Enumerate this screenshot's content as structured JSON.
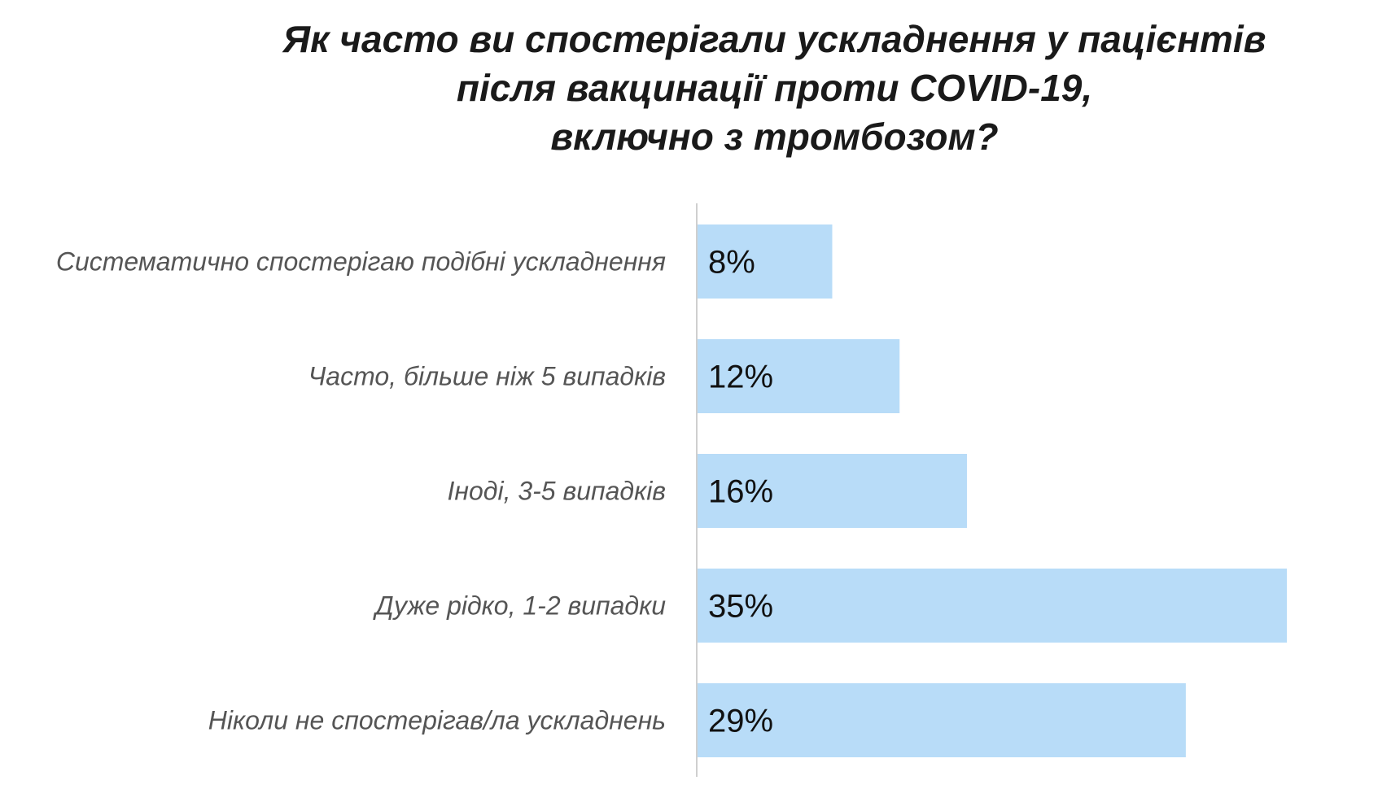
{
  "chart_data": {
    "type": "bar",
    "orientation": "horizontal",
    "title_lines": [
      "Як часто ви спостерігали ускладнення у пацієнтів",
      "після вакцинації проти COVID-19,",
      "включно з тромбозом?"
    ],
    "categories": [
      "Систематично спостерігаю подібні ускладнення",
      "Часто, більше ніж 5 випадків",
      "Іноді, 3-5 випадків",
      "Дуже рідко, 1-2 випадки",
      "Ніколи не спостерігав/ла ускладнень"
    ],
    "values": [
      8,
      12,
      16,
      35,
      29
    ],
    "value_labels": [
      "8%",
      "12%",
      "16%",
      "35%",
      "29%"
    ],
    "xlim": [
      0,
      38
    ],
    "grid": false,
    "bar_color": "#b8dcf8",
    "axis_color": "#cfcfcf"
  }
}
